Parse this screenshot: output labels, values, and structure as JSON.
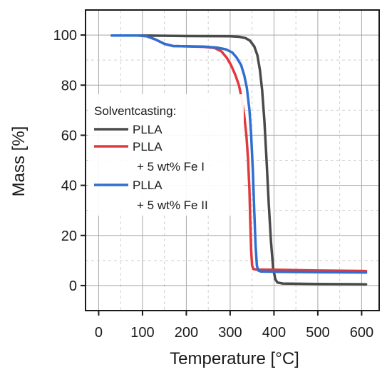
{
  "chart_data": {
    "type": "line",
    "title": "",
    "xlabel": "Temperature [°C]",
    "ylabel": "Mass [%]",
    "xlim": [
      -30,
      640
    ],
    "ylim": [
      -10,
      110
    ],
    "xticks": [
      0,
      100,
      200,
      300,
      400,
      500,
      600
    ],
    "yticks": [
      0,
      20,
      40,
      60,
      80,
      100
    ],
    "grid": true,
    "legend": {
      "placement": "center-left",
      "title": "Solventcasting:",
      "entries": [
        {
          "lines": [
            "PLLA"
          ]
        },
        {
          "lines": [
            "PLLA",
            "+ 5 wt% Fe I"
          ]
        },
        {
          "lines": [
            "PLLA",
            "+ 5 wt% Fe II"
          ]
        }
      ]
    },
    "series": [
      {
        "name": "PLLA",
        "color": "#4a4a4a",
        "points": [
          [
            30,
            99.8
          ],
          [
            100,
            99.8
          ],
          [
            200,
            99.6
          ],
          [
            300,
            99.5
          ],
          [
            320,
            99.3
          ],
          [
            335,
            98.8
          ],
          [
            345,
            97.8
          ],
          [
            355,
            95.5
          ],
          [
            362,
            92
          ],
          [
            368,
            86
          ],
          [
            373,
            78
          ],
          [
            378,
            66
          ],
          [
            383,
            50
          ],
          [
            388,
            33
          ],
          [
            393,
            18
          ],
          [
            398,
            7
          ],
          [
            403,
            2.5
          ],
          [
            408,
            1.2
          ],
          [
            420,
            0.8
          ],
          [
            500,
            0.6
          ],
          [
            610,
            0.5
          ]
        ]
      },
      {
        "name": "PLLA + 5 wt% Fe I",
        "color": "#e0393e",
        "points": [
          [
            30,
            99.8
          ],
          [
            90,
            99.8
          ],
          [
            110,
            99.5
          ],
          [
            130,
            98.2
          ],
          [
            150,
            96.5
          ],
          [
            170,
            95.6
          ],
          [
            200,
            95.5
          ],
          [
            240,
            95.3
          ],
          [
            265,
            94.8
          ],
          [
            280,
            93.5
          ],
          [
            292,
            91
          ],
          [
            302,
            88
          ],
          [
            312,
            84
          ],
          [
            320,
            80
          ],
          [
            326,
            75
          ],
          [
            332,
            68
          ],
          [
            337,
            60
          ],
          [
            341,
            50
          ],
          [
            344,
            38
          ],
          [
            346,
            25
          ],
          [
            348,
            14
          ],
          [
            350,
            8
          ],
          [
            353,
            6.6
          ],
          [
            360,
            6.4
          ],
          [
            400,
            6.3
          ],
          [
            500,
            6.0
          ],
          [
            610,
            5.8
          ]
        ]
      },
      {
        "name": "PLLA + 5 wt% Fe II",
        "color": "#2f6fd0",
        "points": [
          [
            30,
            99.8
          ],
          [
            90,
            99.8
          ],
          [
            110,
            99.5
          ],
          [
            130,
            98.2
          ],
          [
            150,
            96.5
          ],
          [
            170,
            95.6
          ],
          [
            200,
            95.5
          ],
          [
            240,
            95.4
          ],
          [
            270,
            95.0
          ],
          [
            290,
            94.3
          ],
          [
            305,
            93
          ],
          [
            315,
            91
          ],
          [
            325,
            88
          ],
          [
            332,
            84
          ],
          [
            338,
            79
          ],
          [
            344,
            70
          ],
          [
            348,
            60
          ],
          [
            352,
            45
          ],
          [
            355,
            30
          ],
          [
            358,
            16
          ],
          [
            361,
            8
          ],
          [
            364,
            6
          ],
          [
            370,
            5.6
          ],
          [
            400,
            5.5
          ],
          [
            500,
            5.3
          ],
          [
            610,
            5.2
          ]
        ]
      }
    ]
  }
}
